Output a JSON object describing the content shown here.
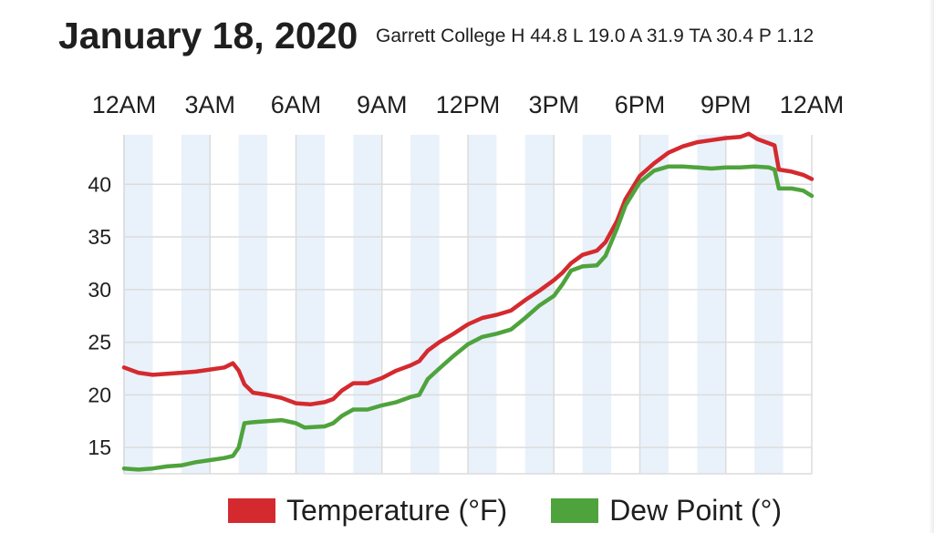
{
  "header": {
    "title": "January 18, 2020",
    "subtitle": "Garrett College H 44.8 L 19.0 A 31.9 TA 30.4 P 1.12"
  },
  "colors": {
    "temperature": "#d42a2f",
    "dew_point": "#4fa33c",
    "band": "#e9f1fa",
    "grid": "#dcdcdc"
  },
  "chart_data": {
    "type": "line",
    "title": "January 18, 2020",
    "subtitle": "Garrett College H 44.8 L 19.0 A 31.9 TA 30.4 P 1.12",
    "x_unit": "hours after midnight",
    "xlim": [
      0,
      24
    ],
    "x_ticks": [
      {
        "x": 0,
        "label": "12AM"
      },
      {
        "x": 3,
        "label": "3AM"
      },
      {
        "x": 6,
        "label": "6AM"
      },
      {
        "x": 9,
        "label": "9AM"
      },
      {
        "x": 12,
        "label": "12PM"
      },
      {
        "x": 15,
        "label": "3PM"
      },
      {
        "x": 18,
        "label": "6PM"
      },
      {
        "x": 21,
        "label": "9PM"
      },
      {
        "x": 24,
        "label": "12AM"
      }
    ],
    "ylim": [
      12.5,
      44.7
    ],
    "y_ticks": [
      15,
      20,
      25,
      30,
      35,
      40
    ],
    "grid": true,
    "legend_position": "bottom",
    "series": [
      {
        "name": "Temperature (°F)",
        "color": "#d42a2f",
        "points": [
          [
            0,
            22.6
          ],
          [
            0.5,
            22.1
          ],
          [
            1,
            21.9
          ],
          [
            1.5,
            22.0
          ],
          [
            2,
            22.1
          ],
          [
            2.5,
            22.2
          ],
          [
            3,
            22.4
          ],
          [
            3.5,
            22.6
          ],
          [
            3.8,
            23.0
          ],
          [
            4,
            22.3
          ],
          [
            4.2,
            21.0
          ],
          [
            4.5,
            20.2
          ],
          [
            5,
            20.0
          ],
          [
            5.5,
            19.7
          ],
          [
            6,
            19.2
          ],
          [
            6.5,
            19.1
          ],
          [
            7,
            19.3
          ],
          [
            7.3,
            19.6
          ],
          [
            7.6,
            20.4
          ],
          [
            8,
            21.1
          ],
          [
            8.5,
            21.1
          ],
          [
            9,
            21.6
          ],
          [
            9.5,
            22.3
          ],
          [
            10,
            22.8
          ],
          [
            10.3,
            23.2
          ],
          [
            10.6,
            24.2
          ],
          [
            11,
            25.0
          ],
          [
            11.5,
            25.8
          ],
          [
            12,
            26.7
          ],
          [
            12.5,
            27.3
          ],
          [
            13,
            27.6
          ],
          [
            13.5,
            28.0
          ],
          [
            14,
            29.0
          ],
          [
            14.5,
            29.9
          ],
          [
            15,
            30.9
          ],
          [
            15.3,
            31.6
          ],
          [
            15.6,
            32.5
          ],
          [
            16,
            33.3
          ],
          [
            16.5,
            33.7
          ],
          [
            16.8,
            34.5
          ],
          [
            17.2,
            36.5
          ],
          [
            17.5,
            38.6
          ],
          [
            18,
            40.8
          ],
          [
            18.5,
            42.0
          ],
          [
            19,
            43.0
          ],
          [
            19.5,
            43.6
          ],
          [
            20,
            44.0
          ],
          [
            20.5,
            44.2
          ],
          [
            21,
            44.4
          ],
          [
            21.5,
            44.5
          ],
          [
            21.8,
            44.8
          ],
          [
            22.1,
            44.3
          ],
          [
            22.5,
            43.9
          ],
          [
            22.7,
            43.7
          ],
          [
            22.85,
            41.4
          ],
          [
            23.3,
            41.2
          ],
          [
            23.7,
            40.9
          ],
          [
            24,
            40.5
          ]
        ]
      },
      {
        "name": "Dew Point (°)",
        "color": "#4fa33c",
        "points": [
          [
            0,
            13.0
          ],
          [
            0.5,
            12.9
          ],
          [
            1,
            13.0
          ],
          [
            1.5,
            13.2
          ],
          [
            2,
            13.3
          ],
          [
            2.5,
            13.6
          ],
          [
            3,
            13.8
          ],
          [
            3.5,
            14.0
          ],
          [
            3.8,
            14.2
          ],
          [
            4,
            15.0
          ],
          [
            4.2,
            17.3
          ],
          [
            4.5,
            17.4
          ],
          [
            5,
            17.5
          ],
          [
            5.5,
            17.6
          ],
          [
            6,
            17.3
          ],
          [
            6.3,
            16.9
          ],
          [
            7,
            17.0
          ],
          [
            7.3,
            17.3
          ],
          [
            7.6,
            18.0
          ],
          [
            8,
            18.6
          ],
          [
            8.5,
            18.6
          ],
          [
            9,
            19.0
          ],
          [
            9.5,
            19.3
          ],
          [
            10,
            19.8
          ],
          [
            10.3,
            20.0
          ],
          [
            10.6,
            21.5
          ],
          [
            11,
            22.5
          ],
          [
            11.5,
            23.7
          ],
          [
            12,
            24.8
          ],
          [
            12.5,
            25.5
          ],
          [
            13,
            25.8
          ],
          [
            13.5,
            26.2
          ],
          [
            14,
            27.3
          ],
          [
            14.5,
            28.5
          ],
          [
            15,
            29.4
          ],
          [
            15.3,
            30.5
          ],
          [
            15.6,
            31.8
          ],
          [
            16,
            32.2
          ],
          [
            16.5,
            32.3
          ],
          [
            16.8,
            33.2
          ],
          [
            17.2,
            35.8
          ],
          [
            17.5,
            38.0
          ],
          [
            18,
            40.2
          ],
          [
            18.5,
            41.3
          ],
          [
            19,
            41.7
          ],
          [
            19.5,
            41.7
          ],
          [
            20,
            41.6
          ],
          [
            20.5,
            41.5
          ],
          [
            21,
            41.6
          ],
          [
            21.5,
            41.6
          ],
          [
            22,
            41.7
          ],
          [
            22.5,
            41.6
          ],
          [
            22.7,
            41.4
          ],
          [
            22.85,
            39.6
          ],
          [
            23.3,
            39.6
          ],
          [
            23.7,
            39.4
          ],
          [
            24,
            38.9
          ]
        ]
      }
    ]
  }
}
